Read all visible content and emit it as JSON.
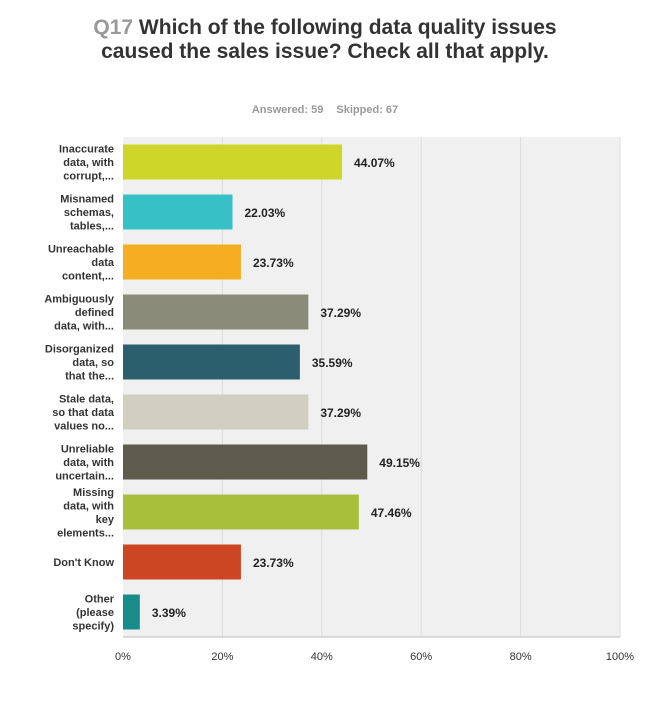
{
  "question": {
    "number": "Q17",
    "text": "Which of the following data quality issues caused the sales issue? Check all that apply."
  },
  "stats": {
    "answered": "Answered: 59",
    "skipped": "Skipped: 67"
  },
  "chart_data": {
    "type": "bar",
    "orientation": "horizontal",
    "categories": [
      "Inaccurate data, with corrupt,...",
      "Misnamed schemas, tables,...",
      "Unreachable data content,...",
      "Ambiguously defined data, with...",
      "Disorganized data, so that the...",
      "Stale data, so that data values no...",
      "Unreliable data, with uncertain...",
      "Missing data, with key elements...",
      "Don't Know",
      "Other (please specify)"
    ],
    "category_lines": [
      [
        "Inaccurate",
        "data, with",
        "corrupt,..."
      ],
      [
        "Misnamed",
        "schemas,",
        "tables,..."
      ],
      [
        "Unreachable",
        "data",
        "content,..."
      ],
      [
        "Ambiguously",
        "defined",
        "data, with..."
      ],
      [
        "Disorganized",
        "data, so",
        "that the..."
      ],
      [
        "Stale data,",
        "so that data",
        "values no..."
      ],
      [
        "Unreliable",
        "data, with",
        "uncertain..."
      ],
      [
        "Missing",
        "data, with",
        "key",
        "elements..."
      ],
      [
        "Don't Know"
      ],
      [
        "Other",
        "(please",
        "specify)"
      ]
    ],
    "values": [
      44.07,
      22.03,
      23.73,
      37.29,
      35.59,
      37.29,
      49.15,
      47.46,
      23.73,
      3.39
    ],
    "value_labels": [
      "44.07%",
      "22.03%",
      "23.73%",
      "37.29%",
      "35.59%",
      "37.29%",
      "49.15%",
      "47.46%",
      "23.73%",
      "3.39%"
    ],
    "colors": [
      "#cdd629",
      "#37c0c6",
      "#f5ae22",
      "#8b8b7a",
      "#2c5f6e",
      "#d0cfc0",
      "#5c5b4c",
      "#a8bf3b",
      "#cc4623",
      "#1a8b8b"
    ],
    "xlim": [
      0,
      100
    ],
    "xticks": [
      0,
      20,
      40,
      60,
      80,
      100
    ],
    "xtick_labels": [
      "0%",
      "20%",
      "40%",
      "60%",
      "80%",
      "100%"
    ],
    "grid": true,
    "background": "#f0f0f0"
  }
}
